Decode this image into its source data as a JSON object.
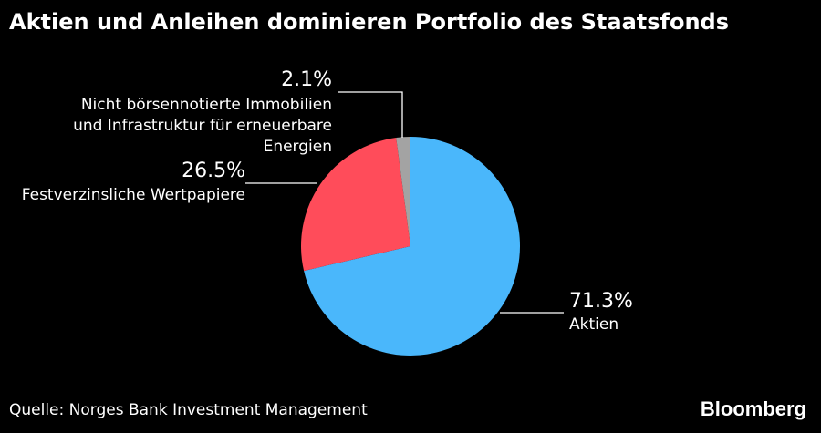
{
  "title": "Aktien und Anleihen dominieren Portfolio des Staatsfonds",
  "source": "Quelle: Norges Bank Investment Management",
  "brand": "Bloomberg",
  "chart_data": {
    "type": "pie",
    "title": "Aktien und Anleihen dominieren Portfolio des Staatsfonds",
    "slices": [
      {
        "name": "Aktien",
        "value": 71.3,
        "display": "71.3%",
        "label_lines": [
          "Aktien"
        ],
        "color": "#4ab7fb"
      },
      {
        "name": "Festverzinsliche Wertpapiere",
        "value": 26.5,
        "display": "26.5%",
        "label_lines": [
          "Festverzinsliche Wertpapiere"
        ],
        "color": "#ff4c5a"
      },
      {
        "name": "Nicht börsennotierte Immobilien und Infrastruktur für erneuerbare Energien",
        "value": 2.1,
        "display": "2.1%",
        "label_lines": [
          "Nicht börsennotierte Immobilien",
          "und Infrastruktur für erneuerbare",
          "Energien"
        ],
        "color": "#a3a3a3"
      }
    ],
    "start": "12 o'clock",
    "direction": "clockwise"
  }
}
